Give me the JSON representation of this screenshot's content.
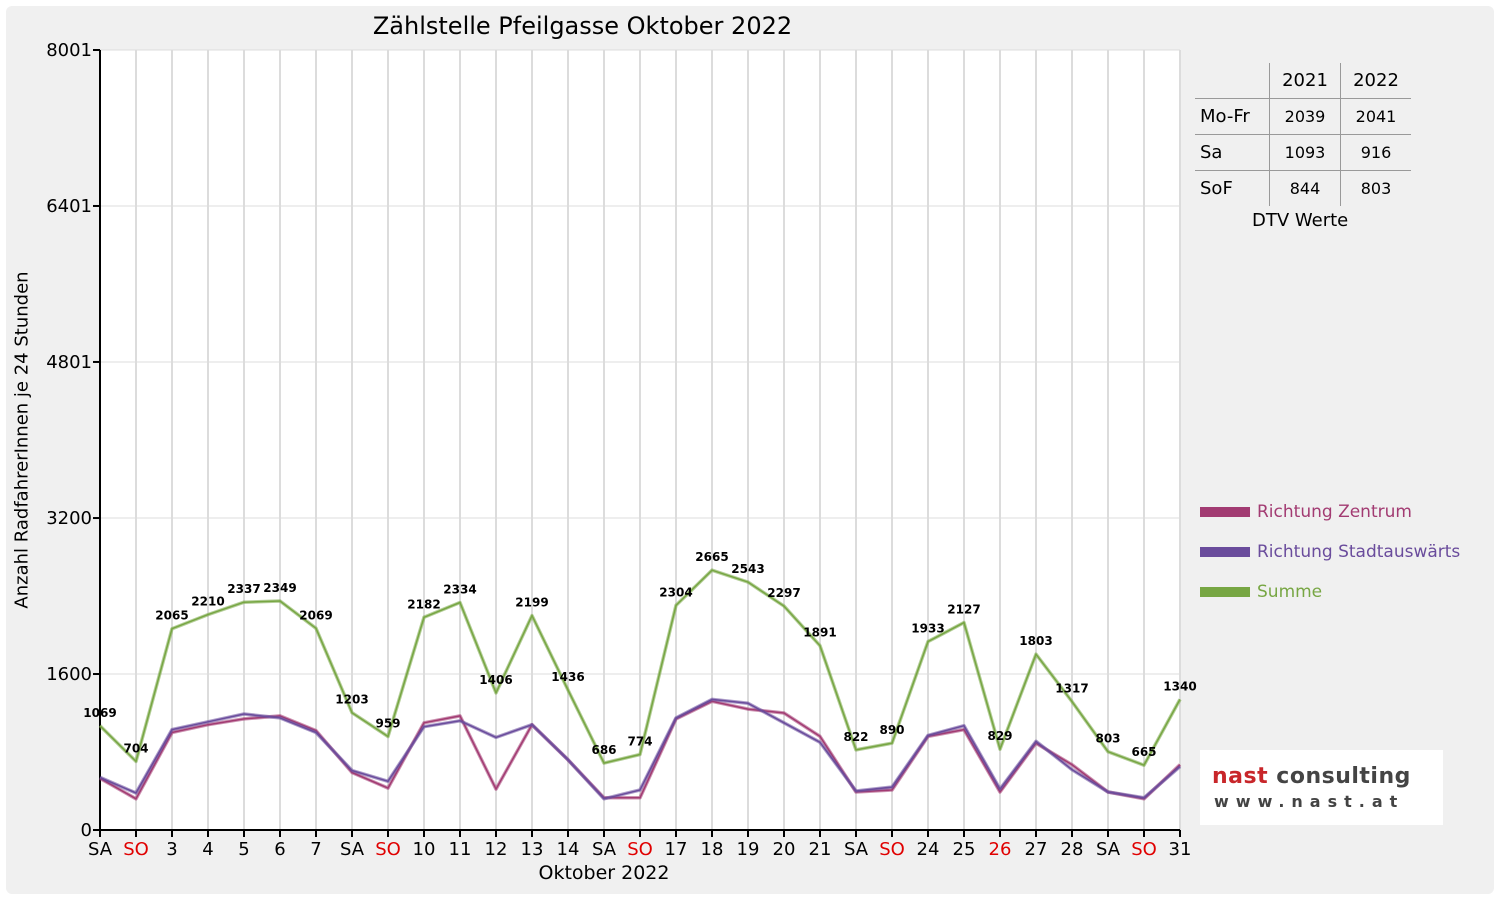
{
  "chart_data": {
    "type": "line",
    "title": "Zählstelle Pfeilgasse Oktober 2022",
    "ylabel": "Anzahl RadfahrerInnen je 24 Stunden",
    "xlabel": "Oktober 2022",
    "ylim": [
      0,
      8001
    ],
    "yticks": [
      0,
      1600,
      3200,
      4801,
      6401,
      8001
    ],
    "ytick_labels": [
      "0",
      "1600",
      "3200",
      "4801",
      "6401",
      "8001"
    ],
    "categories": [
      "SA",
      "SO",
      "3",
      "4",
      "5",
      "6",
      "7",
      "SA",
      "SO",
      "10",
      "11",
      "12",
      "13",
      "14",
      "SA",
      "SO",
      "17",
      "18",
      "19",
      "20",
      "21",
      "SA",
      "SO",
      "24",
      "25",
      "26",
      "27",
      "28",
      "SA",
      "SO",
      "31"
    ],
    "red_categories": [
      1,
      8,
      15,
      22,
      25,
      29
    ],
    "grid": true,
    "legend_position": "right",
    "series": [
      {
        "name": "Richtung Zentrum",
        "color": "#a23b72",
        "values": [
          530,
          320,
          1000,
          1080,
          1140,
          1170,
          1020,
          590,
          430,
          1100,
          1170,
          420,
          1080,
          720,
          330,
          330,
          1140,
          1320,
          1240,
          1200,
          960,
          390,
          410,
          960,
          1030,
          390,
          890,
          670,
          390,
          320,
          670
        ]
      },
      {
        "name": "Richtung Stadtauswärts",
        "color": "#6a4c9c",
        "values": [
          540,
          380,
          1030,
          1110,
          1190,
          1150,
          1000,
          610,
          500,
          1060,
          1120,
          950,
          1080,
          720,
          320,
          410,
          1150,
          1340,
          1300,
          1100,
          900,
          400,
          440,
          970,
          1070,
          420,
          910,
          620,
          390,
          330,
          650
        ]
      },
      {
        "name": "Summe",
        "color": "#77a643",
        "values": [
          1069,
          704,
          2065,
          2210,
          2337,
          2349,
          2069,
          1203,
          959,
          2182,
          2334,
          1406,
          2199,
          1436,
          686,
          774,
          2304,
          2665,
          2543,
          2297,
          1891,
          822,
          890,
          1933,
          2127,
          829,
          1803,
          1317,
          803,
          665,
          1340
        ]
      }
    ],
    "data_labels": [
      "1069",
      "704",
      "2065",
      "2210",
      "2337",
      "2349",
      "2069",
      "1203",
      "959",
      "2182",
      "2334",
      "1406",
      "2199",
      "1436",
      "686",
      "774",
      "2304",
      "2665",
      "2543",
      "2297",
      "1891",
      "822",
      "890",
      "1933",
      "2127",
      "829",
      "1803",
      "1317",
      "803",
      "665",
      "1340"
    ]
  },
  "dtv_table": {
    "headers": [
      "",
      "2021",
      "2022"
    ],
    "rows": [
      {
        "label": "Mo-Fr",
        "v2021": "2039",
        "v2022": "2041"
      },
      {
        "label": "Sa",
        "v2021": "1093",
        "v2022": "916"
      },
      {
        "label": "SoF",
        "v2021": "844",
        "v2022": "803"
      }
    ],
    "caption": "DTV Werte"
  },
  "logo": {
    "name_part1": "nast",
    "name_part2": " consulting",
    "url": "www.nast.at"
  },
  "colors": {
    "frame_bg": "#f0f0f0",
    "grid": "#dcdcdc",
    "weekend_red": "#e00000"
  }
}
